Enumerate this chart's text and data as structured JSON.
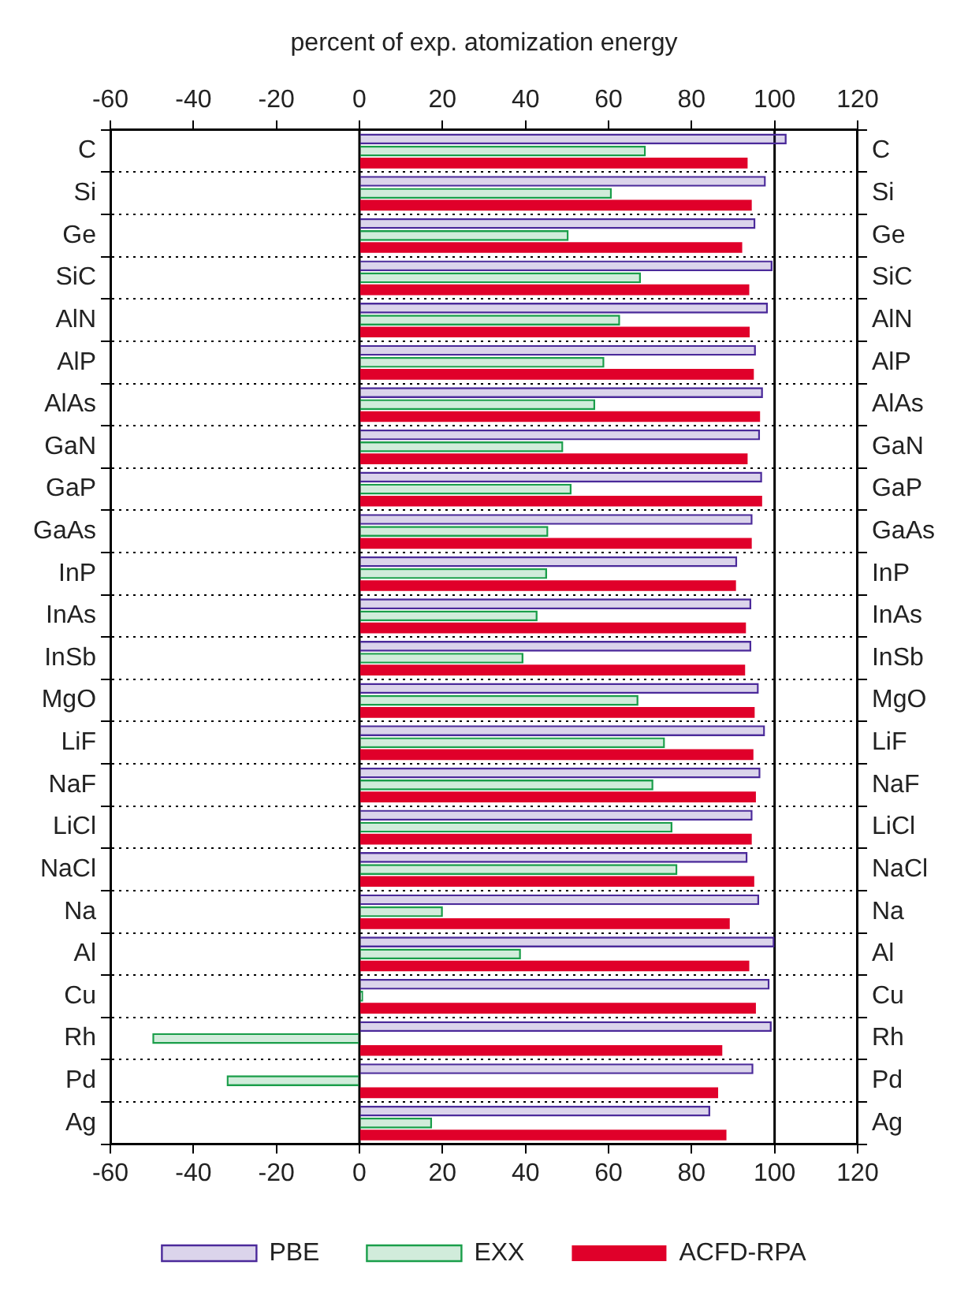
{
  "chart_data": {
    "type": "bar",
    "orientation": "horizontal",
    "x2label": "percent of exp. atomization energy",
    "categories": [
      "C",
      "Si",
      "Ge",
      "SiC",
      "AlN",
      "AlP",
      "AlAs",
      "GaN",
      "GaP",
      "GaAs",
      "InP",
      "InAs",
      "InSb",
      "MgO",
      "LiF",
      "NaF",
      "LiCl",
      "NaCl",
      "Na",
      "Al",
      "Cu",
      "Rh",
      "Pd",
      "Ag"
    ],
    "series": [
      {
        "name": "PBE",
        "color": "#4b2a9a",
        "values": [
          102.9,
          97.9,
          95.4,
          99.5,
          98.4,
          95.5,
          97.2,
          96.5,
          97.0,
          94.7,
          91.0,
          94.4,
          94.4,
          96.2,
          97.7,
          96.6,
          94.7,
          93.5,
          96.3,
          100.0,
          98.8,
          99.3,
          94.9,
          84.5
        ]
      },
      {
        "name": "EXX",
        "color": "#1a9e4a",
        "values": [
          69.0,
          60.8,
          50.4,
          67.8,
          62.8,
          59.0,
          56.8,
          49.1,
          51.1,
          45.5,
          45.2,
          42.9,
          39.5,
          67.2,
          73.6,
          70.8,
          75.4,
          76.6,
          20.1,
          38.9,
          0.9,
          -49.9,
          -32.0,
          17.5
        ]
      },
      {
        "name": "ACFD-RPA",
        "color": "#e0002a",
        "values": [
          93.5,
          94.5,
          92.2,
          93.9,
          94.0,
          95.0,
          96.5,
          93.5,
          97.0,
          94.5,
          90.7,
          93.1,
          92.9,
          95.2,
          94.9,
          95.5,
          94.5,
          95.1,
          89.2,
          93.9,
          95.5,
          87.4,
          86.4,
          88.4
        ]
      }
    ],
    "xlim": [
      -60,
      120
    ],
    "xticks": [
      -60,
      -40,
      -20,
      0,
      20,
      40,
      60,
      80,
      100,
      120
    ],
    "x2lim": [
      -60,
      120
    ],
    "x2ticks": [
      -60,
      -40,
      -20,
      0,
      20,
      40,
      60,
      80,
      100,
      120
    ],
    "ref_lines": [
      {
        "axis": "x",
        "value": 0,
        "color": "#000000"
      },
      {
        "axis": "x",
        "value": 100,
        "color": "#000000"
      }
    ],
    "grid": "y",
    "legend": "bottom"
  }
}
